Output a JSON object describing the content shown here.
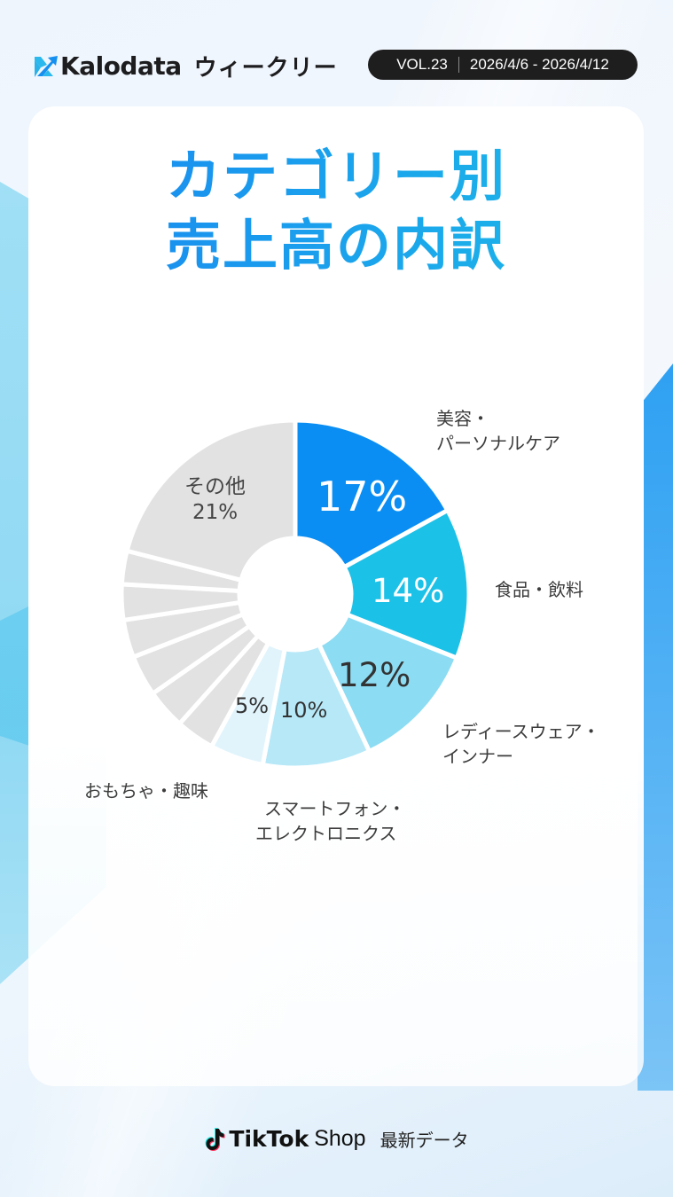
{
  "header": {
    "brand": "Kalodata",
    "subtitle": "ウィークリー",
    "volume": "VOL.23",
    "date_range": "2026/4/6 - 2026/4/12"
  },
  "card": {
    "title_line1": "カテゴリー別",
    "title_line2": "売上高の内訳"
  },
  "chart_data": {
    "type": "pie",
    "title": "カテゴリー別売上高の内訳",
    "donut": true,
    "start_angle": "12 o'clock, clockwise",
    "categories": [
      "美容・パーソナルケア",
      "食品・飲料",
      "レディースウェア・インナー",
      "スマートフォン・エレクトロニクス",
      "おもちゃ・趣味",
      "(unlabeled 1)",
      "(unlabeled 2)",
      "(unlabeled 3)",
      "(unlabeled 4)",
      "(unlabeled 5)",
      "(unlabeled 6)",
      "その他"
    ],
    "values": [
      17,
      14,
      12,
      10,
      5,
      3.6,
      3.7,
      3.8,
      3.5,
      3.3,
      3.1,
      21
    ],
    "value_labels": [
      "17%",
      "14%",
      "12%",
      "10%",
      "5%",
      "",
      "",
      "",
      "",
      "",
      "",
      "21%"
    ],
    "colors": [
      "#0a8ef3",
      "#1cc1e8",
      "#8cdcf3",
      "#b6e8f8",
      "#e1f4fc",
      "#e2e2e2",
      "#e2e2e2",
      "#e2e2e2",
      "#e2e2e2",
      "#e2e2e2",
      "#e2e2e2",
      "#e2e2e2"
    ],
    "label_colors": [
      "#ffffff",
      "#ffffff",
      "#333333",
      "#333333",
      "#333333",
      "",
      "",
      "",
      "",
      "",
      "",
      "#444444"
    ]
  },
  "labels": {
    "beauty_line1": "美容・",
    "beauty_line2": "パーソナルケア",
    "food": "食品・飲料",
    "ladies_line1": "レディースウェア・",
    "ladies_line2": "インナー",
    "phone_line1": "スマートフォン・",
    "phone_line2": "エレクトロニクス",
    "toys": "おもちゃ・趣味",
    "other_name": "その他",
    "pct_beauty": "17%",
    "pct_food": "14%",
    "pct_ladies": "12%",
    "pct_phone": "10%",
    "pct_toys": "5%",
    "pct_other": "21%"
  },
  "footer": {
    "brand": "TikTok",
    "shop": "Shop",
    "tagline": "最新データ"
  }
}
